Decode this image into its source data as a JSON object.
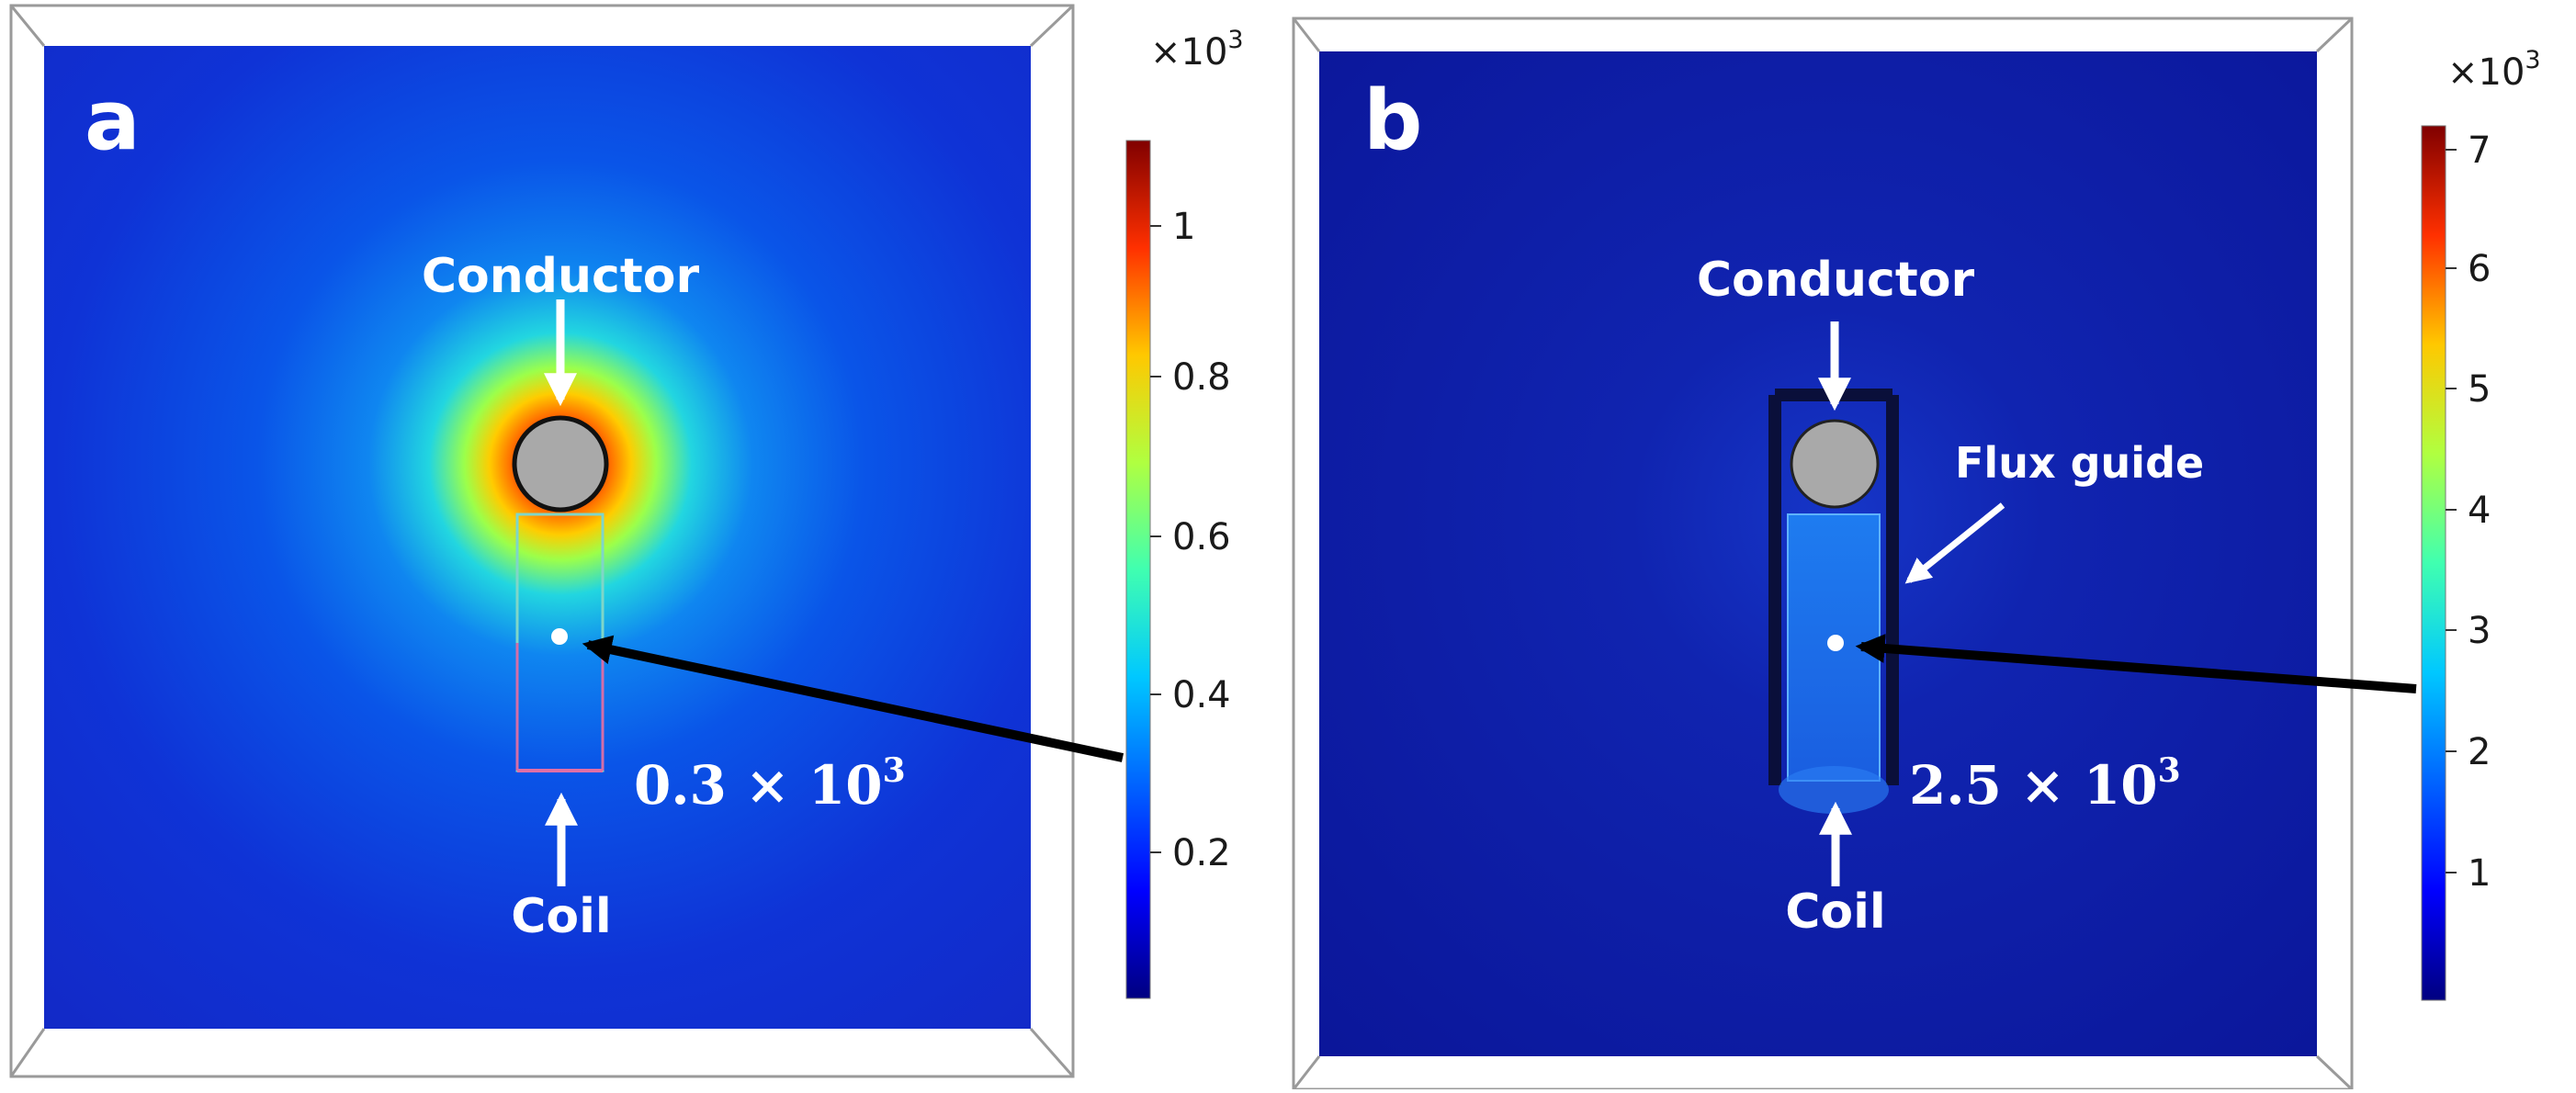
{
  "panels": [
    {
      "letter": "a",
      "labels": {
        "conductor": "Conductor",
        "coil": "Coil"
      },
      "probe_value": {
        "mantissa": "0.3",
        "times": "×",
        "base": "10",
        "exp": "3"
      },
      "colorbar": {
        "multiplier": "×10",
        "multiplier_exp": "3",
        "ticks": [
          "1",
          "0.8",
          "0.6",
          "0.4",
          "0.2"
        ]
      }
    },
    {
      "letter": "b",
      "labels": {
        "conductor": "Conductor",
        "coil": "Coil",
        "flux_guide": "Flux guide"
      },
      "probe_value": {
        "mantissa": "2.5",
        "times": "×",
        "base": "10",
        "exp": "3"
      },
      "colorbar": {
        "multiplier": "×10",
        "multiplier_exp": "3",
        "ticks": [
          "7",
          "6",
          "5",
          "4",
          "3",
          "2",
          "1"
        ]
      }
    }
  ],
  "colors": {
    "background": "#1a1ac9",
    "background_b": "#0d1499",
    "conductor_fill": "#a9a9a9",
    "flux_guide": "#0a0f3a",
    "label_text": "#ffffff",
    "arrow": "#000000"
  }
}
